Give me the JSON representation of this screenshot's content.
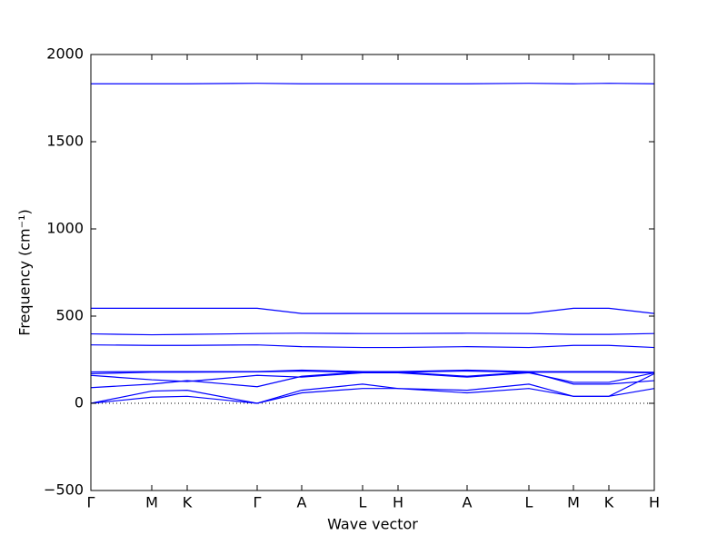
{
  "chart_data": {
    "type": "line",
    "x_label": "Wave vector",
    "y_label": "Frequency (cm⁻¹)",
    "x": [
      0,
      0.67,
      1.06,
      1.83,
      2.32,
      2.99,
      3.38,
      4.14,
      4.82,
      5.31,
      5.7,
      6.2
    ],
    "color": "#0000ff",
    "series": [
      {
        "values": [
          1832,
          1832,
          1832,
          1835,
          1832,
          1832,
          1832,
          1832,
          1835,
          1832,
          1835,
          1832
        ]
      },
      {
        "values": [
          545,
          545,
          545,
          545,
          515,
          515,
          515,
          515,
          515,
          545,
          545,
          515
        ]
      },
      {
        "values": [
          398,
          393,
          395,
          400,
          402,
          400,
          400,
          402,
          400,
          395,
          395,
          400
        ]
      },
      {
        "values": [
          335,
          332,
          332,
          335,
          325,
          320,
          320,
          325,
          320,
          332,
          332,
          320
        ]
      },
      {
        "values": [
          180,
          182,
          182,
          182,
          190,
          182,
          182,
          190,
          182,
          182,
          182,
          178
        ]
      },
      {
        "values": [
          170,
          178,
          178,
          180,
          185,
          178,
          178,
          185,
          178,
          178,
          178,
          175
        ]
      },
      {
        "values": [
          160,
          135,
          125,
          160,
          150,
          175,
          175,
          150,
          175,
          120,
          120,
          175
        ]
      },
      {
        "values": [
          90,
          110,
          130,
          95,
          155,
          180,
          180,
          155,
          180,
          110,
          110,
          130
        ]
      },
      {
        "values": [
          0,
          70,
          75,
          0,
          75,
          110,
          85,
          75,
          110,
          40,
          40,
          170
        ]
      },
      {
        "values": [
          0,
          35,
          40,
          0,
          60,
          85,
          85,
          60,
          85,
          40,
          40,
          85
        ]
      }
    ],
    "xlim": [
      0,
      6.2
    ],
    "xticks": [
      {
        "value": 0,
        "label": "Γ"
      },
      {
        "value": 0.67,
        "label": "M"
      },
      {
        "value": 1.06,
        "label": "K"
      },
      {
        "value": 1.83,
        "label": "Γ"
      },
      {
        "value": 2.32,
        "label": "A"
      },
      {
        "value": 2.99,
        "label": "L"
      },
      {
        "value": 3.38,
        "label": "H"
      },
      {
        "value": 4.14,
        "label": "A"
      },
      {
        "value": 4.82,
        "label": "L"
      },
      {
        "value": 5.31,
        "label": "M"
      },
      {
        "value": 5.7,
        "label": "K"
      },
      {
        "value": 6.2,
        "label": "H"
      }
    ],
    "ylim": [
      -500,
      2000
    ],
    "yticks": [
      {
        "value": -500,
        "label": "−500"
      },
      0,
      500,
      1000,
      1500,
      2000
    ],
    "hline": 0,
    "grid": false
  }
}
